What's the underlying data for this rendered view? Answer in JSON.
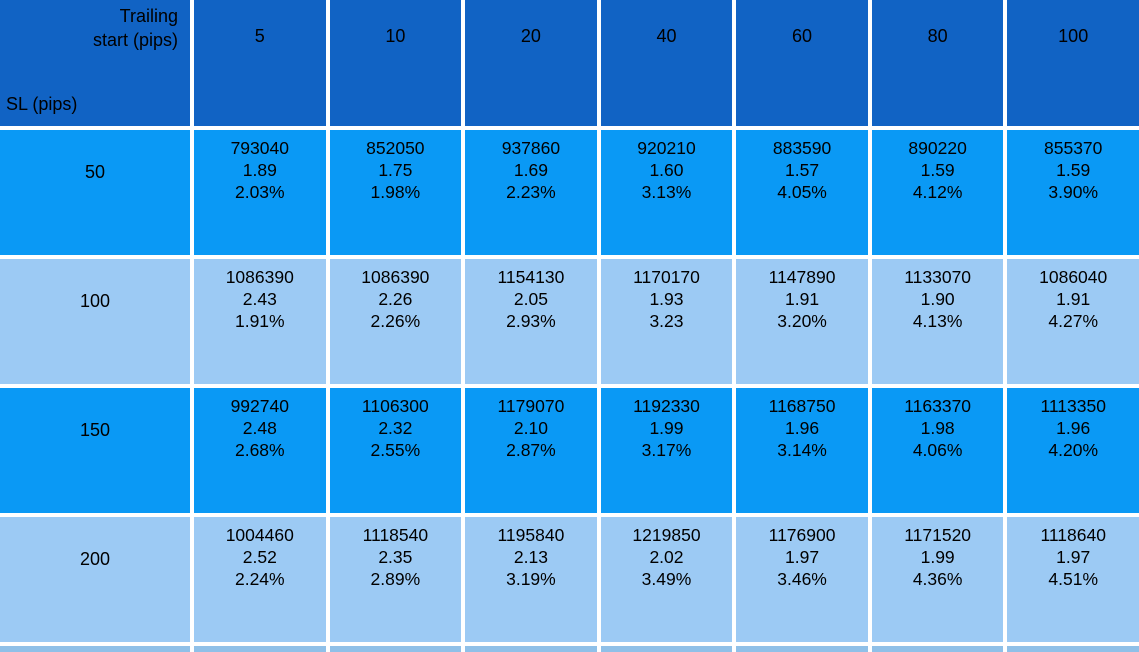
{
  "colors": {
    "header_bg": "#1163c4",
    "row_bright_bg": "#0a99f5",
    "row_light_bg": "#9ccaf4",
    "grid_line_color": "#ffffff",
    "bottom_strip": "#8fc0e8",
    "text": "#000000"
  },
  "chart_data": {
    "type": "table",
    "corner_top_label_line1": "Trailing",
    "corner_top_label_line2": "start (pips)",
    "corner_bottom_label": "SL (pips)",
    "columns": [
      "5",
      "10",
      "20",
      "40",
      "60",
      "80",
      "100"
    ],
    "cell_line_meaning": [
      "result",
      "ratio",
      "percent"
    ],
    "rows": [
      {
        "sl": "50",
        "cells": [
          [
            "793040",
            "1.89",
            "2.03%"
          ],
          [
            "852050",
            "1.75",
            "1.98%"
          ],
          [
            "937860",
            "1.69",
            "2.23%"
          ],
          [
            "920210",
            "1.60",
            "3.13%"
          ],
          [
            "883590",
            "1.57",
            "4.05%"
          ],
          [
            "890220",
            "1.59",
            "4.12%"
          ],
          [
            "855370",
            "1.59",
            "3.90%"
          ]
        ]
      },
      {
        "sl": "100",
        "cells": [
          [
            "1086390",
            "2.43",
            "1.91%"
          ],
          [
            "1086390",
            "2.26",
            "2.26%"
          ],
          [
            "1154130",
            "2.05",
            "2.93%"
          ],
          [
            "1170170",
            "1.93",
            "3.23"
          ],
          [
            "1147890",
            "1.91",
            "3.20%"
          ],
          [
            "1133070",
            "1.90",
            "4.13%"
          ],
          [
            "1086040",
            "1.91",
            "4.27%"
          ]
        ]
      },
      {
        "sl": "150",
        "cells": [
          [
            "992740",
            "2.48",
            "2.68%"
          ],
          [
            "1106300",
            "2.32",
            "2.55%"
          ],
          [
            "1179070",
            "2.10",
            "2.87%"
          ],
          [
            "1192330",
            "1.99",
            "3.17%"
          ],
          [
            "1168750",
            "1.96",
            "3.14%"
          ],
          [
            "1163370",
            "1.98",
            "4.06%"
          ],
          [
            "1113350",
            "1.96",
            "4.20%"
          ]
        ]
      },
      {
        "sl": "200",
        "cells": [
          [
            "1004460",
            "2.52",
            "2.24%"
          ],
          [
            "1118540",
            "2.35",
            "2.89%"
          ],
          [
            "1195840",
            "2.13",
            "3.19%"
          ],
          [
            "1219850",
            "2.02",
            "3.49%"
          ],
          [
            "1176900",
            "1.97",
            "3.46%"
          ],
          [
            "1171520",
            "1.99",
            "4.36%"
          ],
          [
            "1118640",
            "1.97",
            "4.51%"
          ]
        ]
      }
    ]
  }
}
